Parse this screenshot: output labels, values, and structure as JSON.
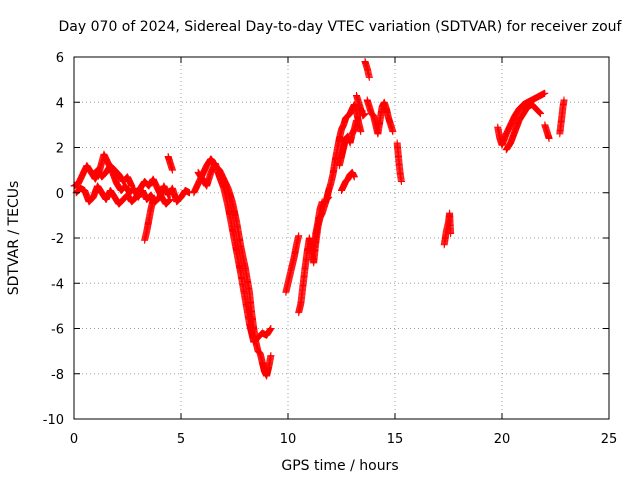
{
  "chart_data": {
    "type": "scatter",
    "title": "Day 070 of 2024, Sidereal Day-to-day VTEC variation (SDTVAR) for receiver zouf",
    "xlabel": "GPS time / hours",
    "ylabel": "SDTVAR / TECUs",
    "xlim": [
      0,
      25
    ],
    "ylim": [
      -10,
      6
    ],
    "xticks": [
      0,
      5,
      10,
      15,
      20,
      25
    ],
    "yticks": [
      -10,
      -8,
      -6,
      -4,
      -2,
      0,
      2,
      4,
      6
    ],
    "grid": true,
    "marker": "+",
    "color": "#ff0000",
    "series": [
      {
        "name": "SDTVAR",
        "segments": [
          [
            [
              0.0,
              0.3
            ],
            [
              0.2,
              0.4
            ],
            [
              0.4,
              0.8
            ],
            [
              0.6,
              1.2
            ],
            [
              0.8,
              0.9
            ],
            [
              1.0,
              0.6
            ],
            [
              1.2,
              1.0
            ],
            [
              1.4,
              1.7
            ],
            [
              1.6,
              1.3
            ],
            [
              1.8,
              0.9
            ],
            [
              2.0,
              0.4
            ],
            [
              2.2,
              0.1
            ],
            [
              2.4,
              0.3
            ],
            [
              2.6,
              0.0
            ],
            [
              2.8,
              0.2
            ],
            [
              3.0,
              -0.2
            ],
            [
              3.2,
              0.1
            ],
            [
              3.4,
              -0.3
            ],
            [
              3.6,
              -0.1
            ],
            [
              3.8,
              -0.4
            ],
            [
              4.0,
              -0.2
            ],
            [
              4.2,
              0.3
            ],
            [
              4.4,
              -0.1
            ],
            [
              4.6,
              0.2
            ],
            [
              4.8,
              -0.4
            ],
            [
              5.0,
              -0.2
            ],
            [
              5.2,
              0.1
            ],
            [
              5.4,
              0.0
            ]
          ],
          [
            [
              0.1,
              0.0
            ],
            [
              0.3,
              0.2
            ],
            [
              0.5,
              0.1
            ],
            [
              0.7,
              -0.4
            ],
            [
              0.9,
              -0.2
            ],
            [
              1.1,
              0.3
            ],
            [
              1.3,
              0.0
            ],
            [
              1.5,
              -0.3
            ],
            [
              1.7,
              0.1
            ],
            [
              1.9,
              -0.2
            ],
            [
              2.1,
              -0.5
            ],
            [
              2.3,
              -0.3
            ],
            [
              2.5,
              -0.1
            ],
            [
              2.7,
              -0.4
            ],
            [
              2.9,
              -0.2
            ],
            [
              3.1,
              0.2
            ],
            [
              3.3,
              0.5
            ],
            [
              3.5,
              0.3
            ],
            [
              3.7,
              0.6
            ],
            [
              3.9,
              0.2
            ],
            [
              4.1,
              -0.2
            ],
            [
              4.3,
              -0.5
            ],
            [
              4.5,
              -0.3
            ]
          ],
          [
            [
              0.9,
              0.8
            ],
            [
              1.1,
              1.0
            ],
            [
              1.3,
              0.7
            ],
            [
              1.5,
              0.9
            ],
            [
              1.7,
              1.2
            ],
            [
              1.9,
              1.0
            ],
            [
              2.1,
              0.8
            ],
            [
              2.3,
              0.5
            ],
            [
              2.5,
              0.7
            ],
            [
              2.7,
              0.3
            ]
          ],
          [
            [
              3.3,
              -2.1
            ],
            [
              3.4,
              -1.7
            ],
            [
              3.5,
              -1.2
            ],
            [
              3.6,
              -0.7
            ],
            [
              3.7,
              -0.3
            ]
          ],
          [
            [
              4.4,
              1.6
            ],
            [
              4.5,
              1.3
            ],
            [
              4.6,
              1.0
            ]
          ],
          [
            [
              5.6,
              0.0
            ],
            [
              5.8,
              0.4
            ],
            [
              6.0,
              0.8
            ],
            [
              6.2,
              1.2
            ],
            [
              6.4,
              1.5
            ],
            [
              6.6,
              1.2
            ],
            [
              6.8,
              1.0
            ],
            [
              7.0,
              0.6
            ],
            [
              7.2,
              0.2
            ],
            [
              7.4,
              -0.4
            ],
            [
              7.6,
              -1.3
            ],
            [
              7.8,
              -2.4
            ],
            [
              8.0,
              -3.3
            ],
            [
              8.2,
              -4.4
            ],
            [
              8.3,
              -5.3
            ],
            [
              8.4,
              -6.0
            ],
            [
              8.5,
              -6.6
            ],
            [
              8.6,
              -7.0
            ],
            [
              8.7,
              -7.1
            ],
            [
              8.8,
              -7.5
            ],
            [
              8.9,
              -7.9
            ],
            [
              9.0,
              -8.1
            ],
            [
              9.1,
              -7.7
            ],
            [
              9.2,
              -7.2
            ]
          ],
          [
            [
              5.8,
              0.9
            ],
            [
              6.0,
              0.6
            ],
            [
              6.2,
              0.3
            ],
            [
              6.4,
              0.9
            ],
            [
              6.6,
              1.3
            ],
            [
              6.8,
              0.7
            ],
            [
              7.0,
              0.2
            ],
            [
              7.2,
              -0.6
            ],
            [
              7.4,
              -1.6
            ],
            [
              7.6,
              -2.6
            ],
            [
              7.8,
              -3.6
            ],
            [
              8.0,
              -4.7
            ],
            [
              8.2,
              -5.8
            ],
            [
              8.4,
              -6.6
            ],
            [
              8.6,
              -6.4
            ],
            [
              8.8,
              -6.2
            ],
            [
              9.0,
              -6.3
            ],
            [
              9.2,
              -6.0
            ]
          ],
          [
            [
              9.9,
              -4.4
            ],
            [
              10.0,
              -4.0
            ],
            [
              10.1,
              -3.6
            ],
            [
              10.2,
              -3.2
            ],
            [
              10.3,
              -2.8
            ],
            [
              10.4,
              -2.3
            ],
            [
              10.5,
              -1.9
            ]
          ],
          [
            [
              10.5,
              -5.3
            ],
            [
              10.6,
              -4.9
            ],
            [
              10.7,
              -4.1
            ],
            [
              10.8,
              -3.3
            ],
            [
              10.9,
              -2.6
            ],
            [
              11.0,
              -2.0
            ],
            [
              11.1,
              -2.6
            ],
            [
              11.2,
              -3.1
            ],
            [
              11.3,
              -2.2
            ],
            [
              11.4,
              -1.5
            ],
            [
              11.5,
              -1.1
            ],
            [
              11.6,
              -0.9
            ],
            [
              11.7,
              -0.6
            ],
            [
              11.8,
              -0.3
            ],
            [
              11.9,
              -0.2
            ]
          ],
          [
            [
              11.2,
              -2.6
            ],
            [
              11.3,
              -1.8
            ],
            [
              11.4,
              -1.3
            ],
            [
              11.5,
              -0.7
            ],
            [
              11.6,
              -0.4
            ]
          ],
          [
            [
              11.8,
              -0.3
            ],
            [
              11.9,
              0.1
            ],
            [
              12.0,
              0.4
            ],
            [
              12.1,
              0.8
            ],
            [
              12.2,
              1.4
            ],
            [
              12.3,
              1.9
            ],
            [
              12.4,
              2.4
            ],
            [
              12.5,
              2.8
            ],
            [
              12.6,
              3.0
            ],
            [
              12.7,
              3.3
            ],
            [
              12.8,
              3.4
            ],
            [
              12.9,
              3.5
            ],
            [
              13.0,
              3.7
            ],
            [
              13.1,
              3.9
            ],
            [
              13.2,
              3.6
            ],
            [
              13.3,
              3.1
            ],
            [
              13.4,
              2.7
            ]
          ],
          [
            [
              12.4,
              1.2
            ],
            [
              12.5,
              1.6
            ],
            [
              12.6,
              2.0
            ],
            [
              12.7,
              2.4
            ],
            [
              12.8,
              2.5
            ],
            [
              12.9,
              2.2
            ],
            [
              13.0,
              2.6
            ],
            [
              13.1,
              2.8
            ],
            [
              13.2,
              3.2
            ]
          ],
          [
            [
              12.5,
              0.1
            ],
            [
              12.6,
              0.3
            ],
            [
              12.7,
              0.5
            ],
            [
              12.8,
              0.6
            ],
            [
              12.9,
              0.8
            ],
            [
              13.0,
              0.9
            ],
            [
              13.1,
              0.7
            ]
          ],
          [
            [
              13.2,
              4.3
            ],
            [
              13.3,
              4.0
            ],
            [
              13.4,
              3.7
            ],
            [
              13.5,
              3.4
            ],
            [
              13.6,
              3.5
            ]
          ],
          [
            [
              13.6,
              5.8
            ],
            [
              13.7,
              5.5
            ],
            [
              13.75,
              5.3
            ],
            [
              13.8,
              5.1
            ]
          ],
          [
            [
              13.7,
              4.1
            ],
            [
              13.8,
              3.8
            ],
            [
              13.9,
              3.5
            ],
            [
              14.0,
              3.4
            ],
            [
              14.1,
              3.0
            ],
            [
              14.2,
              2.6
            ],
            [
              14.3,
              3.2
            ],
            [
              14.4,
              3.8
            ],
            [
              14.5,
              4.0
            ],
            [
              14.6,
              3.7
            ],
            [
              14.7,
              3.3
            ],
            [
              14.8,
              3.0
            ],
            [
              14.9,
              2.7
            ]
          ],
          [
            [
              15.1,
              2.2
            ],
            [
              15.15,
              1.7
            ],
            [
              15.2,
              1.2
            ],
            [
              15.25,
              0.8
            ],
            [
              15.3,
              0.5
            ]
          ],
          [
            [
              17.3,
              -2.3
            ],
            [
              17.4,
              -1.7
            ],
            [
              17.5,
              -1.3
            ],
            [
              17.55,
              -0.9
            ],
            [
              17.6,
              -1.8
            ]
          ],
          [
            [
              19.8,
              2.9
            ],
            [
              19.9,
              2.4
            ],
            [
              20.0,
              2.1
            ],
            [
              20.2,
              2.6
            ],
            [
              20.4,
              3.0
            ],
            [
              20.6,
              3.4
            ],
            [
              20.8,
              3.7
            ],
            [
              21.0,
              3.9
            ],
            [
              21.2,
              4.0
            ],
            [
              21.4,
              4.1
            ],
            [
              21.6,
              4.2
            ],
            [
              21.8,
              4.3
            ],
            [
              22.0,
              4.4
            ]
          ],
          [
            [
              20.2,
              1.9
            ],
            [
              20.4,
              2.2
            ],
            [
              20.6,
              2.7
            ],
            [
              20.8,
              3.2
            ],
            [
              21.0,
              3.5
            ],
            [
              21.2,
              3.8
            ],
            [
              21.4,
              3.9
            ],
            [
              21.6,
              3.7
            ],
            [
              21.8,
              3.5
            ]
          ],
          [
            [
              22.0,
              3.0
            ],
            [
              22.1,
              2.7
            ],
            [
              22.2,
              2.4
            ]
          ],
          [
            [
              22.7,
              2.6
            ],
            [
              22.75,
              3.0
            ],
            [
              22.8,
              3.4
            ],
            [
              22.85,
              3.8
            ],
            [
              22.9,
              4.1
            ]
          ]
        ]
      }
    ]
  }
}
